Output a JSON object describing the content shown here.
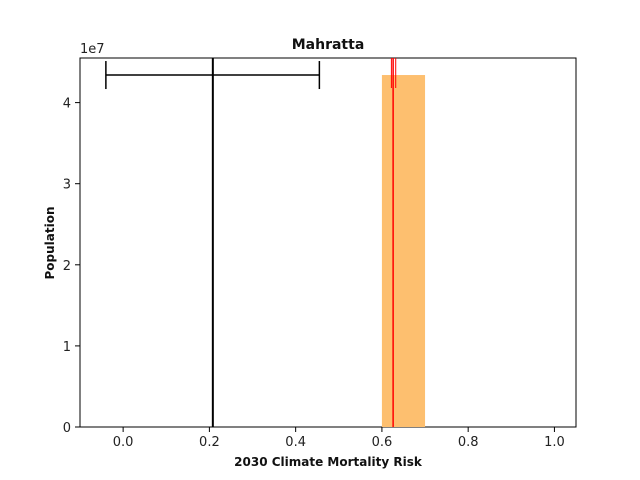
{
  "chart_data": {
    "type": "bar",
    "title": "Mahratta",
    "xlabel": "2030 Climate Mortality Risk",
    "ylabel": "Population",
    "y_scale_label": "1e7",
    "xlim": [
      -0.1,
      1.05
    ],
    "ylim": [
      0,
      45500000
    ],
    "xticks": [
      0.0,
      0.2,
      0.4,
      0.6,
      0.8,
      1.0
    ],
    "xtick_labels": [
      "0.0",
      "0.2",
      "0.4",
      "0.6",
      "0.8",
      "1.0"
    ],
    "yticks": [
      0,
      10000000,
      20000000,
      30000000,
      40000000
    ],
    "ytick_labels": [
      "0",
      "1",
      "2",
      "3",
      "4"
    ],
    "grid": false,
    "bars": [
      {
        "x_start": 0.6,
        "x_end": 0.7,
        "value": 43400000,
        "color": "#fdbf6f"
      }
    ],
    "reference_line": {
      "x": 0.208,
      "color": "#000000"
    },
    "errorbar": {
      "y": 43400000,
      "center": 0.208,
      "xmin": -0.04,
      "xmax": 0.455,
      "color": "#000000"
    },
    "red_marker": {
      "x": 0.626,
      "y_top": 45500000,
      "y_bottom": 0,
      "err_xmin": 0.622,
      "err_xmax": 0.632,
      "err_ymin": 41800000,
      "err_ymax": 45500000,
      "color": "#ff0000"
    }
  }
}
